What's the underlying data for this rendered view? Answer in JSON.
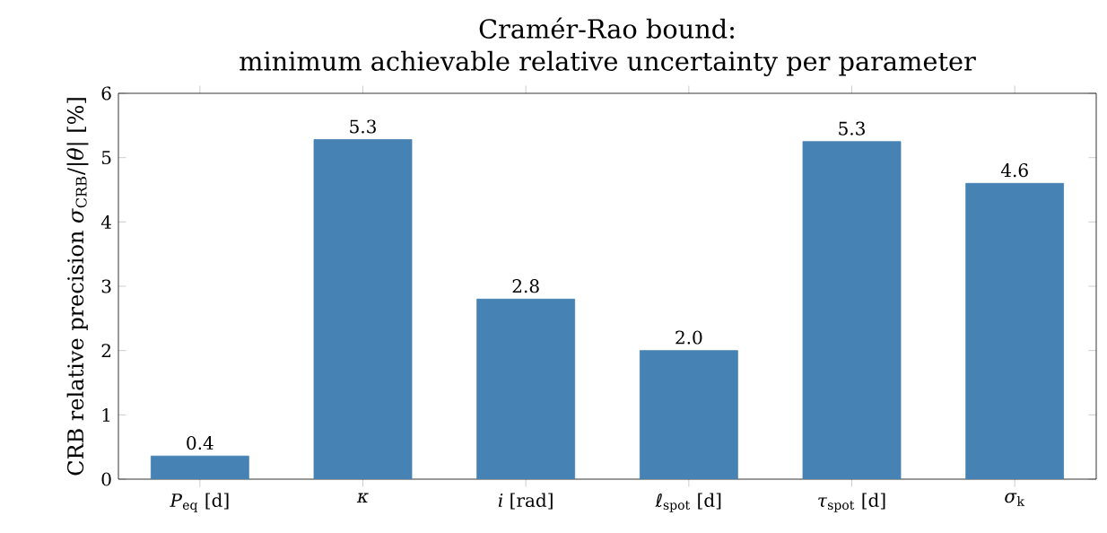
{
  "chart_data": {
    "type": "bar",
    "title": "Cramér-Rao bound:",
    "subtitle": "minimum achievable relative uncertainty per parameter",
    "ylabel": "CRB relative precision *σ*$_{CRB}$/|*θ*| [%]",
    "categories": [
      "*P*$_{eq}$ [d]",
      "*κ*",
      "*i* [rad]",
      "*ℓ*$_{spot}$ [d]",
      "*τ*$_{spot}$ [d]",
      "*σ*$_{k}$"
    ],
    "values": [
      0.36,
      5.28,
      2.8,
      2.0,
      5.25,
      4.6
    ],
    "value_labels": [
      "0.4",
      "5.3",
      "2.8",
      "2.0",
      "5.3",
      "4.6"
    ],
    "color": "#4682b4",
    "ylim": [
      0,
      6
    ],
    "yticks": [
      0,
      1,
      2,
      3,
      4,
      5,
      6
    ],
    "grid": false
  }
}
